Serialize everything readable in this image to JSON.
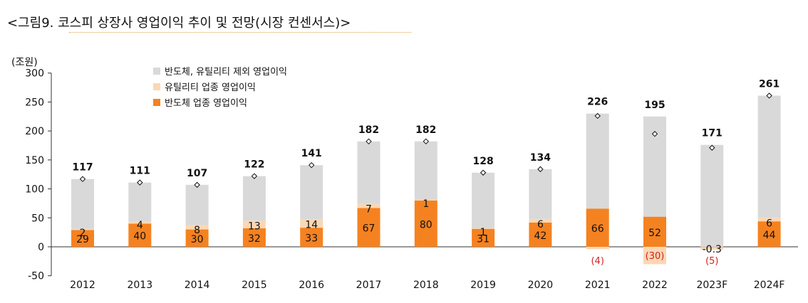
{
  "title": "<그림9. 코스피 상장사 영업이익 추이 및 전망(시장 컨센서스)>",
  "chart_data": {
    "type": "bar",
    "stacked": true,
    "unit_label": "(조원)",
    "ylim": [
      -50,
      300
    ],
    "yticks": [
      -50,
      0,
      50,
      100,
      150,
      200,
      250,
      300
    ],
    "categories": [
      "2012",
      "2013",
      "2014",
      "2015",
      "2016",
      "2017",
      "2018",
      "2019",
      "2020",
      "2021",
      "2022",
      "2023F",
      "2024F"
    ],
    "series": [
      {
        "name": "반도체 업종 영업이익",
        "color": "#f58220",
        "values": [
          29,
          40,
          30,
          32,
          33,
          67,
          80,
          31,
          42,
          66,
          52,
          -0.3,
          44
        ],
        "labels": [
          "29",
          "40",
          "30",
          "32",
          "33",
          "67",
          "80",
          "31",
          "42",
          "66",
          "52",
          "-0.3",
          "44"
        ]
      },
      {
        "name": "유틸리티 업종 영업이익",
        "color": "#fbd7b4",
        "values": [
          2,
          4,
          8,
          13,
          14,
          7,
          1,
          1,
          6,
          -4,
          -30,
          -5,
          6
        ],
        "labels": [
          "2",
          "4",
          "8",
          "13",
          "14",
          "7",
          "1",
          "1",
          "6",
          "(4)",
          "(30)",
          "(5)",
          "6"
        ]
      },
      {
        "name": "반도체, 유틸리티 제외 영업이익",
        "color": "#d9d9d9",
        "values": [
          86,
          67,
          69,
          77,
          94,
          108,
          101,
          96,
          86,
          164,
          173,
          176,
          211
        ]
      }
    ],
    "totals": [
      117,
      111,
      107,
      122,
      141,
      182,
      182,
      128,
      134,
      226,
      195,
      171,
      261
    ],
    "legend": [
      "반도체, 유틸리티 제외 영업이익",
      "유틸리티 업종 영업이익",
      "반도체 업종 영업이익"
    ],
    "legend_position": "top-left"
  }
}
